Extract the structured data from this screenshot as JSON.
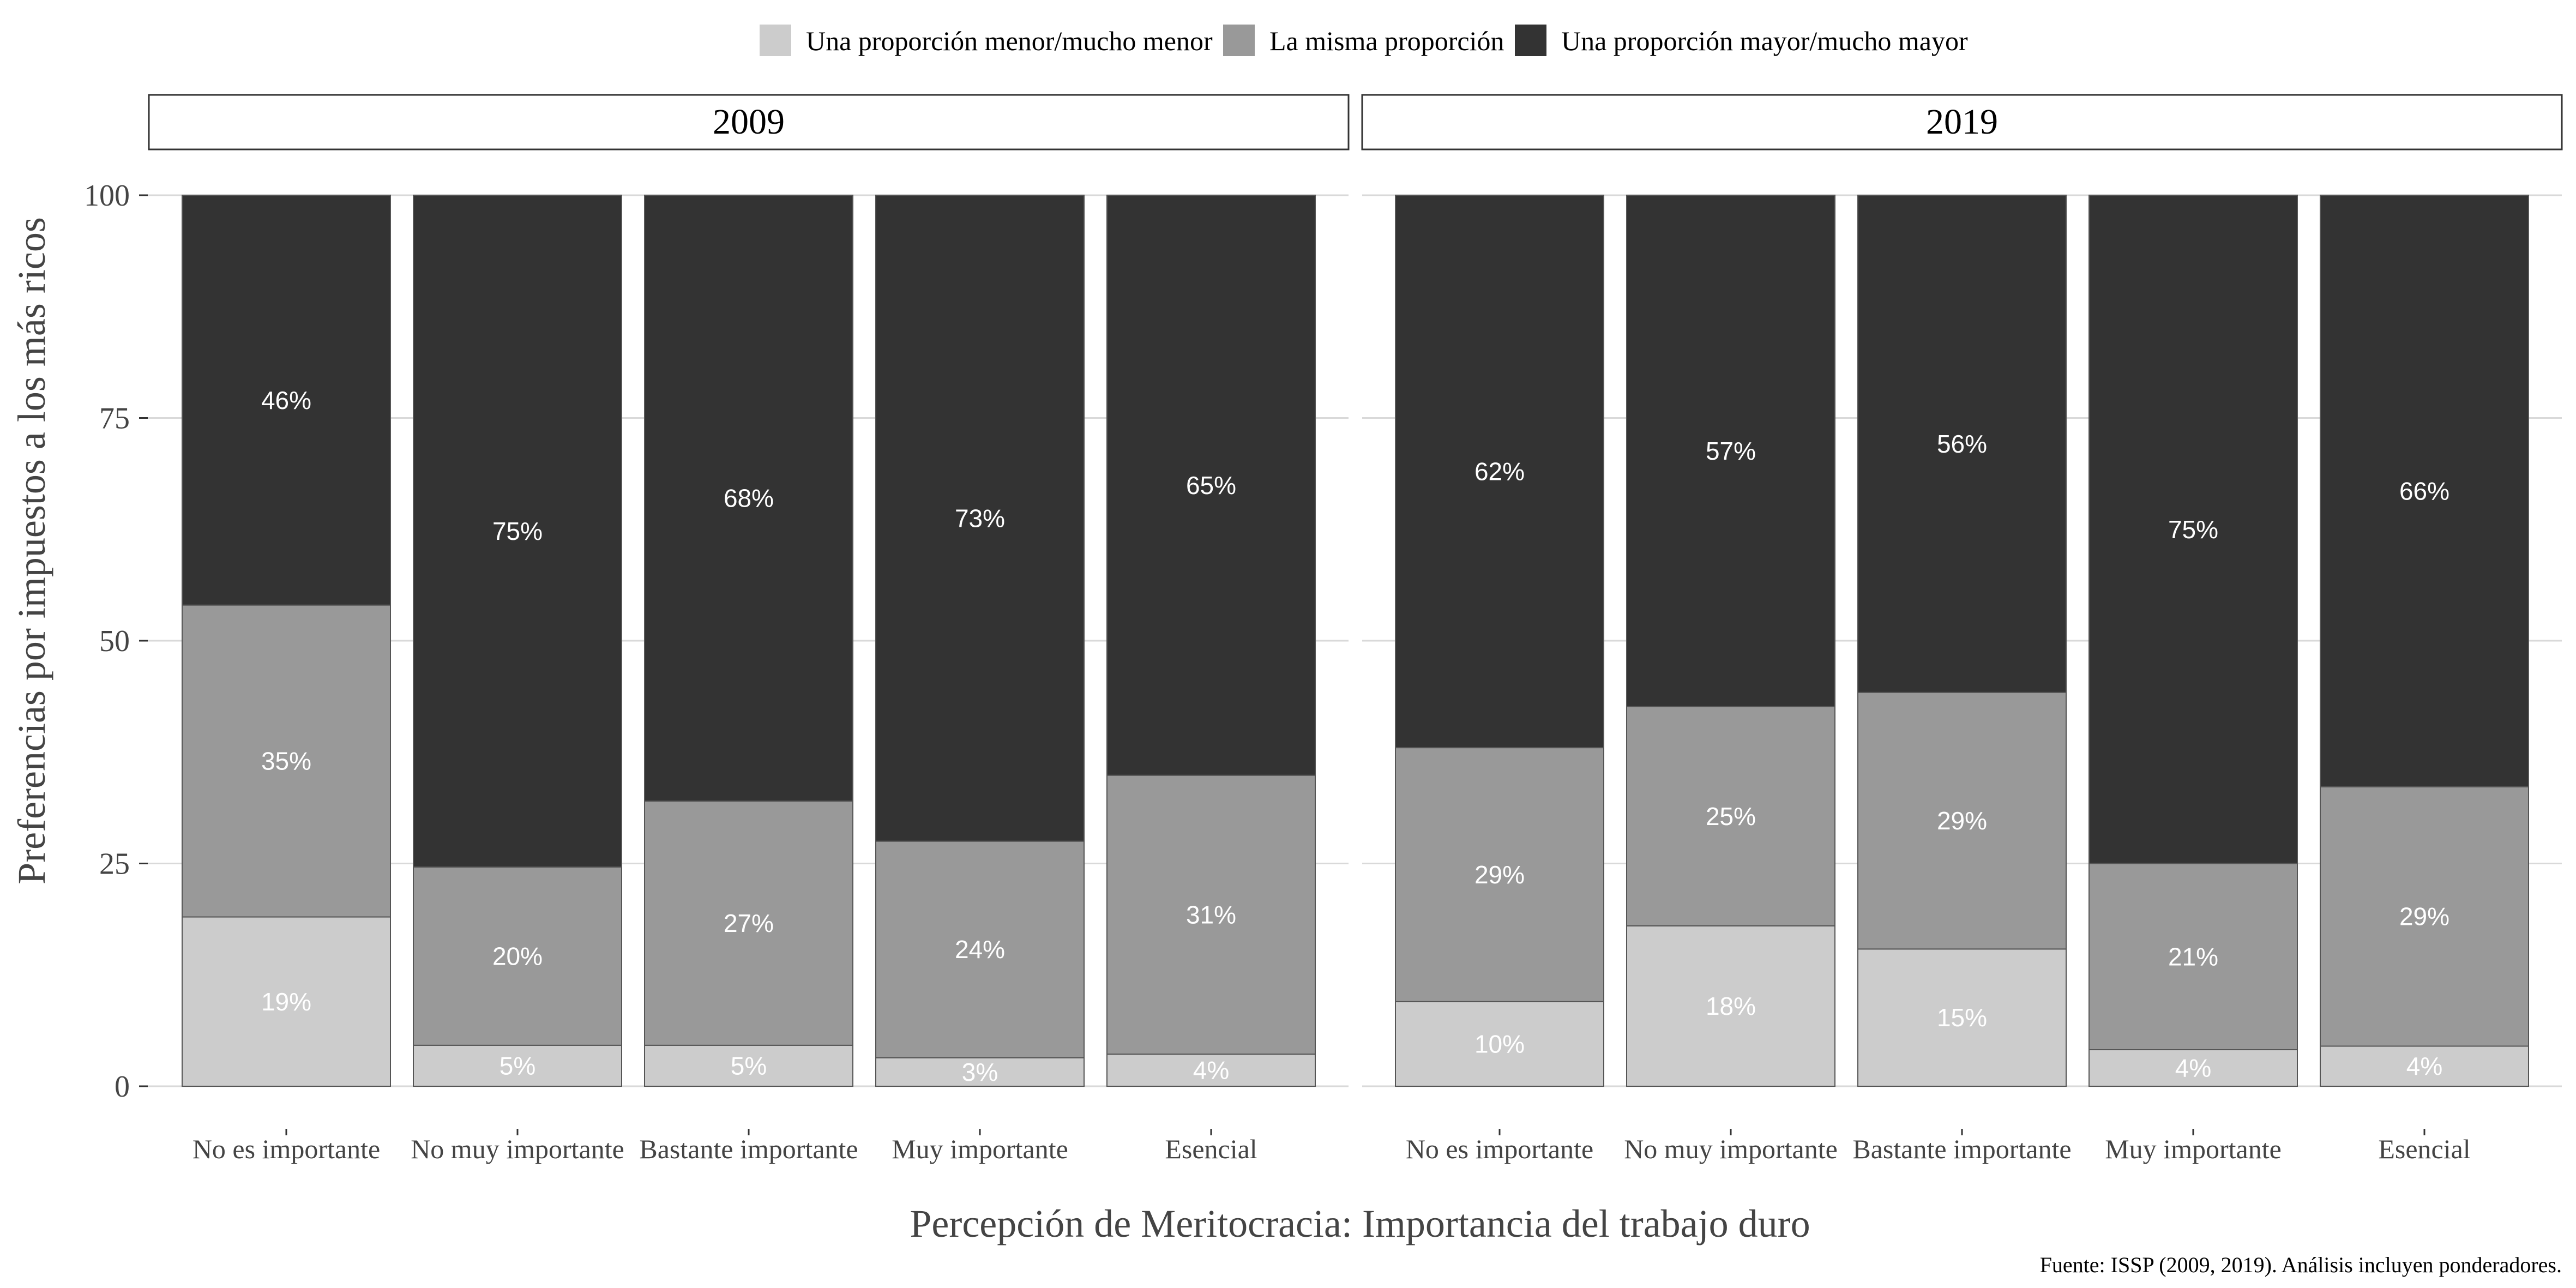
{
  "chart_data": {
    "type": "bar",
    "stacked": true,
    "ylabel": "Preferencias por impuestos a los más ricos",
    "xlabel": "Percepción de Meritocracia: Importancia del trabajo duro",
    "caption": "Fuente: ISSP (2009, 2019). Análisis incluyen ponderadores.",
    "ylim": [
      0,
      100
    ],
    "yticks": [
      "0",
      "25",
      "50",
      "75",
      "100"
    ],
    "ytick_values": [
      0,
      25,
      50,
      75,
      100
    ],
    "grid": true,
    "legend_position": "top",
    "categories": [
      "No es importante",
      "No muy importante",
      "Bastante importante",
      "Muy importante",
      "Esencial"
    ],
    "series_colors": [
      "#cccccc",
      "#999999",
      "#333333"
    ],
    "legend": [
      {
        "name": "Una proporción menor/mucho menor",
        "color": "#cccccc"
      },
      {
        "name": "La misma proporción",
        "color": "#999999"
      },
      {
        "name": "Una proporción mayor/mucho mayor",
        "color": "#333333"
      }
    ],
    "panels": [
      {
        "title": "2009",
        "series": [
          {
            "name": "Una proporción menor/mucho menor",
            "values": [
              19,
              4.6,
              4.6,
              3.2,
              3.6
            ],
            "labels": [
              "19%",
              "5%",
              "5%",
              "3%",
              "4%"
            ]
          },
          {
            "name": "La misma proporción",
            "values": [
              35,
              20,
              27.4,
              24.3,
              31.3
            ],
            "labels": [
              "35%",
              "20%",
              "27%",
              "24%",
              "31%"
            ]
          },
          {
            "name": "Una proporción mayor/mucho mayor",
            "values": [
              46,
              75.4,
              68,
              72.5,
              65.1
            ],
            "labels": [
              "46%",
              "75%",
              "68%",
              "73%",
              "65%"
            ]
          }
        ]
      },
      {
        "title": "2019",
        "series": [
          {
            "name": "Una proporción menor/mucho menor",
            "values": [
              9.5,
              18,
              15.4,
              4.1,
              4.5
            ],
            "labels": [
              "10%",
              "18%",
              "15%",
              "4%",
              "4%"
            ]
          },
          {
            "name": "La misma proporción",
            "values": [
              28.5,
              24.6,
              28.8,
              20.9,
              29.1
            ],
            "labels": [
              "29%",
              "25%",
              "29%",
              "21%",
              "29%"
            ]
          },
          {
            "name": "Una proporción mayor/mucho mayor",
            "values": [
              62,
              57.4,
              55.8,
              75,
              66.4
            ],
            "labels": [
              "62%",
              "57%",
              "56%",
              "75%",
              "66%"
            ]
          }
        ]
      }
    ]
  }
}
